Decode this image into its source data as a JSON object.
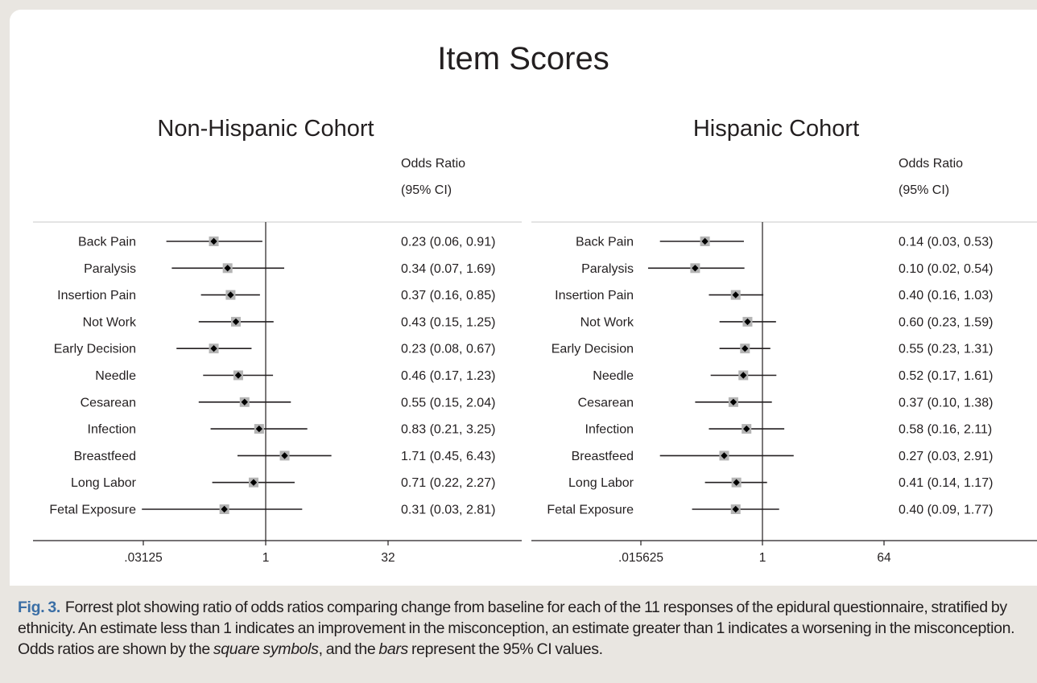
{
  "chart_data": {
    "type": "forest",
    "title": "Item Scores",
    "column_header_line1": "Odds Ratio",
    "column_header_line2": "(95% CI)",
    "categories": [
      "Back Pain",
      "Paralysis",
      "Insertion Pain",
      "Not Work",
      "Early Decision",
      "Needle",
      "Cesarean",
      "Infection",
      "Breastfeed",
      "Long Labor",
      "Fetal Exposure"
    ],
    "panels": [
      {
        "subtitle": "Non-Hispanic Cohort",
        "x_scale": "log2",
        "xlim": [
          0.03125,
          32
        ],
        "x_ticks": [
          ".03125",
          "1",
          "32"
        ],
        "tick_values": [
          0.03125,
          1,
          32
        ],
        "rows": [
          {
            "label": "Back Pain",
            "or": 0.23,
            "lo": 0.06,
            "hi": 0.91,
            "text": "0.23 (0.06, 0.91)"
          },
          {
            "label": "Paralysis",
            "or": 0.34,
            "lo": 0.07,
            "hi": 1.69,
            "text": "0.34 (0.07, 1.69)"
          },
          {
            "label": "Insertion Pain",
            "or": 0.37,
            "lo": 0.16,
            "hi": 0.85,
            "text": "0.37 (0.16, 0.85)"
          },
          {
            "label": "Not Work",
            "or": 0.43,
            "lo": 0.15,
            "hi": 1.25,
            "text": "0.43 (0.15, 1.25)"
          },
          {
            "label": "Early Decision",
            "or": 0.23,
            "lo": 0.08,
            "hi": 0.67,
            "text": "0.23 (0.08, 0.67)"
          },
          {
            "label": "Needle",
            "or": 0.46,
            "lo": 0.17,
            "hi": 1.23,
            "text": "0.46 (0.17, 1.23)"
          },
          {
            "label": "Cesarean",
            "or": 0.55,
            "lo": 0.15,
            "hi": 2.04,
            "text": "0.55 (0.15, 2.04)"
          },
          {
            "label": "Infection",
            "or": 0.83,
            "lo": 0.21,
            "hi": 3.25,
            "text": "0.83 (0.21, 3.25)"
          },
          {
            "label": "Breastfeed",
            "or": 1.71,
            "lo": 0.45,
            "hi": 6.43,
            "text": "1.71 (0.45, 6.43)"
          },
          {
            "label": "Long Labor",
            "or": 0.71,
            "lo": 0.22,
            "hi": 2.27,
            "text": "0.71 (0.22, 2.27)"
          },
          {
            "label": "Fetal Exposure",
            "or": 0.31,
            "lo": 0.03,
            "hi": 2.81,
            "text": "0.31 (0.03, 2.81)"
          }
        ]
      },
      {
        "subtitle": "Hispanic Cohort",
        "x_scale": "log2",
        "xlim": [
          0.015625,
          64
        ],
        "x_ticks": [
          ".015625",
          "1",
          "64"
        ],
        "tick_values": [
          0.015625,
          1,
          64
        ],
        "rows": [
          {
            "label": "Back Pain",
            "or": 0.14,
            "lo": 0.03,
            "hi": 0.53,
            "text": "0.14 (0.03, 0.53)"
          },
          {
            "label": "Paralysis",
            "or": 0.1,
            "lo": 0.02,
            "hi": 0.54,
            "text": "0.10 (0.02, 0.54)"
          },
          {
            "label": "Insertion Pain",
            "or": 0.4,
            "lo": 0.16,
            "hi": 1.03,
            "text": "0.40 (0.16, 1.03)"
          },
          {
            "label": "Not Work",
            "or": 0.6,
            "lo": 0.23,
            "hi": 1.59,
            "text": "0.60 (0.23, 1.59)"
          },
          {
            "label": "Early Decision",
            "or": 0.55,
            "lo": 0.23,
            "hi": 1.31,
            "text": "0.55 (0.23, 1.31)"
          },
          {
            "label": "Needle",
            "or": 0.52,
            "lo": 0.17,
            "hi": 1.61,
            "text": "0.52 (0.17, 1.61)"
          },
          {
            "label": "Cesarean",
            "or": 0.37,
            "lo": 0.1,
            "hi": 1.38,
            "text": "0.37 (0.10, 1.38)"
          },
          {
            "label": "Infection",
            "or": 0.58,
            "lo": 0.16,
            "hi": 2.11,
            "text": "0.58 (0.16, 2.11)"
          },
          {
            "label": "Breastfeed",
            "or": 0.27,
            "lo": 0.03,
            "hi": 2.91,
            "text": "0.27 (0.03, 2.91)"
          },
          {
            "label": "Long Labor",
            "or": 0.41,
            "lo": 0.14,
            "hi": 1.17,
            "text": "0.41 (0.14, 1.17)"
          },
          {
            "label": "Fetal Exposure",
            "or": 0.4,
            "lo": 0.09,
            "hi": 1.77,
            "text": "0.40 (0.09, 1.77)"
          }
        ]
      }
    ]
  },
  "caption": {
    "fig_label": "Fig. 3.",
    "text_part1": "Forrest plot showing ratio of odds ratios comparing change from baseline for each of the 11 responses of the epidural questionnaire, stratified by ethnicity. An estimate less than 1 indicates an improvement in the misconception, an estimate greater than 1 indicates a worsening in the misconception. Odds ratios are shown by the ",
    "italic1": "square symbols",
    "text_part2": ", and the ",
    "italic2": "bars",
    "text_part3": " represent the 95% CI values."
  },
  "colors": {
    "background": "#e9e6e1",
    "panel": "#ffffff",
    "text": "#231f20",
    "figure_label": "#3a6ea5",
    "marker_box": "#b4b4b4",
    "marker_point": "#000000"
  }
}
